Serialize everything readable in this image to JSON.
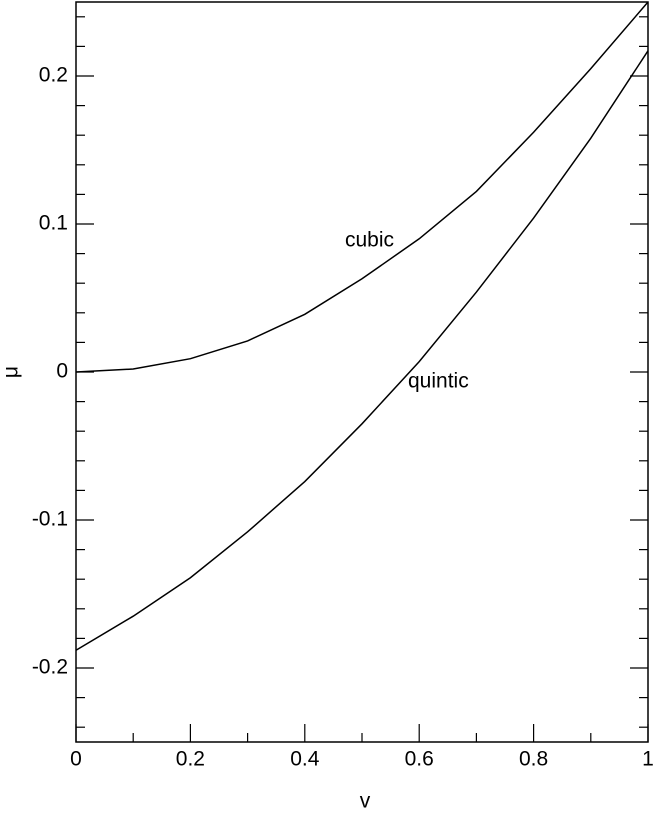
{
  "chart_data": {
    "type": "line",
    "xlabel": "v",
    "ylabel": "μ",
    "x": [
      0,
      0.1,
      0.2,
      0.3,
      0.4,
      0.5,
      0.6,
      0.7,
      0.8,
      0.9,
      1
    ],
    "series": [
      {
        "name": "cubic",
        "color": "#000000",
        "values": [
          0,
          0.002,
          0.009,
          0.021,
          0.039,
          0.063,
          0.09,
          0.122,
          0.162,
          0.205,
          0.25
        ]
      },
      {
        "name": "quintic",
        "color": "#000000",
        "values": [
          -0.188,
          -0.165,
          -0.139,
          -0.108,
          -0.074,
          -0.035,
          0.007,
          0.054,
          0.104,
          0.158,
          0.217
        ]
      }
    ],
    "xlim": [
      0,
      1
    ],
    "ylim": [
      -0.25,
      0.25
    ],
    "xticks": [
      0,
      0.2,
      0.4,
      0.6,
      0.8,
      1
    ],
    "yticks": [
      -0.2,
      -0.1,
      0,
      0.1,
      0.2
    ],
    "xminor_ticks": [
      0.1,
      0.3,
      0.5,
      0.7,
      0.9
    ],
    "yminor_ticks": [
      -0.24,
      -0.22,
      -0.18,
      -0.16,
      -0.14,
      -0.12,
      -0.08,
      -0.06,
      -0.04,
      -0.02,
      0.02,
      0.04,
      0.06,
      0.08,
      0.12,
      0.14,
      0.16,
      0.18,
      0.22,
      0.24
    ],
    "grid": false
  }
}
